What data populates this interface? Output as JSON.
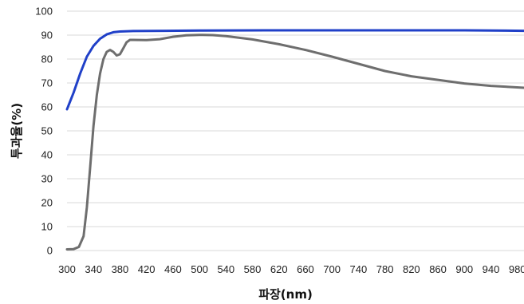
{
  "chart_data": {
    "type": "line",
    "title": "",
    "xlabel": "파장(nm)",
    "ylabel": "투과율(%)",
    "xlim": [
      300,
      990
    ],
    "ylim": [
      0,
      100
    ],
    "grid": true,
    "x_ticks": [
      300,
      340,
      380,
      420,
      460,
      500,
      540,
      580,
      620,
      660,
      700,
      740,
      780,
      820,
      860,
      900,
      940,
      980
    ],
    "y_ticks": [
      0,
      10,
      20,
      30,
      40,
      50,
      60,
      70,
      80,
      90,
      100
    ],
    "series": [
      {
        "color": "#2040c8",
        "points": [
          [
            300,
            59
          ],
          [
            310,
            66
          ],
          [
            320,
            74
          ],
          [
            330,
            81
          ],
          [
            340,
            85.5
          ],
          [
            350,
            88.5
          ],
          [
            360,
            90.3
          ],
          [
            370,
            91.2
          ],
          [
            380,
            91.5
          ],
          [
            400,
            91.7
          ],
          [
            450,
            91.8
          ],
          [
            500,
            91.9
          ],
          [
            600,
            92.0
          ],
          [
            700,
            92.0
          ],
          [
            800,
            92.0
          ],
          [
            900,
            92.0
          ],
          [
            990,
            91.8
          ]
        ]
      },
      {
        "color": "#6e6e6e",
        "points": [
          [
            300,
            0.5
          ],
          [
            310,
            0.6
          ],
          [
            318,
            1.5
          ],
          [
            325,
            6
          ],
          [
            330,
            18
          ],
          [
            335,
            35
          ],
          [
            340,
            52
          ],
          [
            345,
            65
          ],
          [
            350,
            74
          ],
          [
            355,
            80
          ],
          [
            360,
            83
          ],
          [
            365,
            83.8
          ],
          [
            370,
            83
          ],
          [
            375,
            81.5
          ],
          [
            380,
            82
          ],
          [
            385,
            84.5
          ],
          [
            390,
            87
          ],
          [
            395,
            88
          ],
          [
            400,
            88
          ],
          [
            420,
            87.9
          ],
          [
            440,
            88.3
          ],
          [
            460,
            89.3
          ],
          [
            480,
            89.9
          ],
          [
            500,
            90.1
          ],
          [
            520,
            90.0
          ],
          [
            540,
            89.6
          ],
          [
            580,
            88.2
          ],
          [
            620,
            86.2
          ],
          [
            660,
            83.8
          ],
          [
            700,
            81
          ],
          [
            740,
            78
          ],
          [
            780,
            75
          ],
          [
            820,
            72.8
          ],
          [
            860,
            71.3
          ],
          [
            900,
            69.8
          ],
          [
            940,
            68.8
          ],
          [
            990,
            68
          ]
        ]
      }
    ]
  }
}
